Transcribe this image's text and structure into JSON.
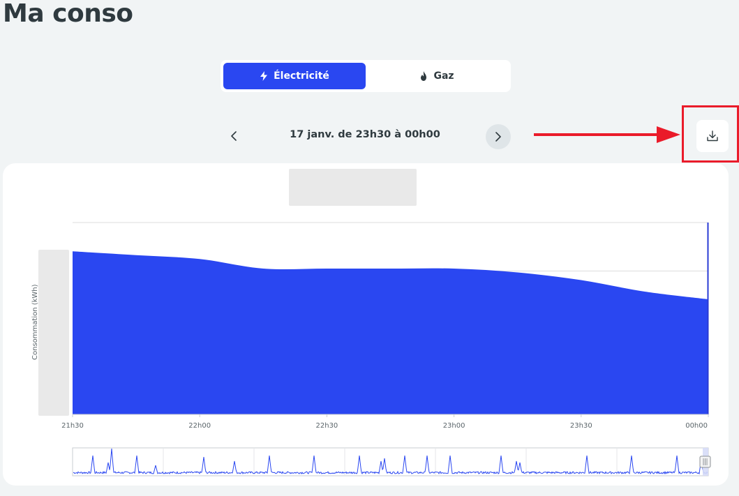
{
  "page_title": "Ma conso",
  "energy_toggle": {
    "electricity_label": "Électricité",
    "gas_label": "Gaz",
    "selected": "electricity"
  },
  "period": {
    "label": "17 janv. de 23h30 à 00h00"
  },
  "colors": {
    "accent": "#2a47f1",
    "highlight": "#ea1b2a",
    "background": "#f1f4f5"
  },
  "icons": {
    "electricity": "lightning-icon",
    "gas": "flame-icon",
    "prev": "chevron-left-icon",
    "next": "chevron-right-icon",
    "download": "download-icon"
  },
  "chart_data": {
    "type": "area",
    "ylabel": "Consommation (kWh)",
    "xlabel": "",
    "categories": [
      "21h30",
      "22h00",
      "22h30",
      "23h00",
      "23h30",
      "00h00"
    ],
    "x": [
      0,
      0.5,
      1,
      1.5,
      2,
      2.5,
      3,
      3.5,
      4,
      4.5,
      5
    ],
    "values": [
      0.85,
      0.83,
      0.81,
      0.76,
      0.76,
      0.76,
      0.76,
      0.74,
      0.7,
      0.64,
      0.6
    ],
    "ylim": [
      0,
      1
    ],
    "grid": true,
    "legend": "none"
  }
}
